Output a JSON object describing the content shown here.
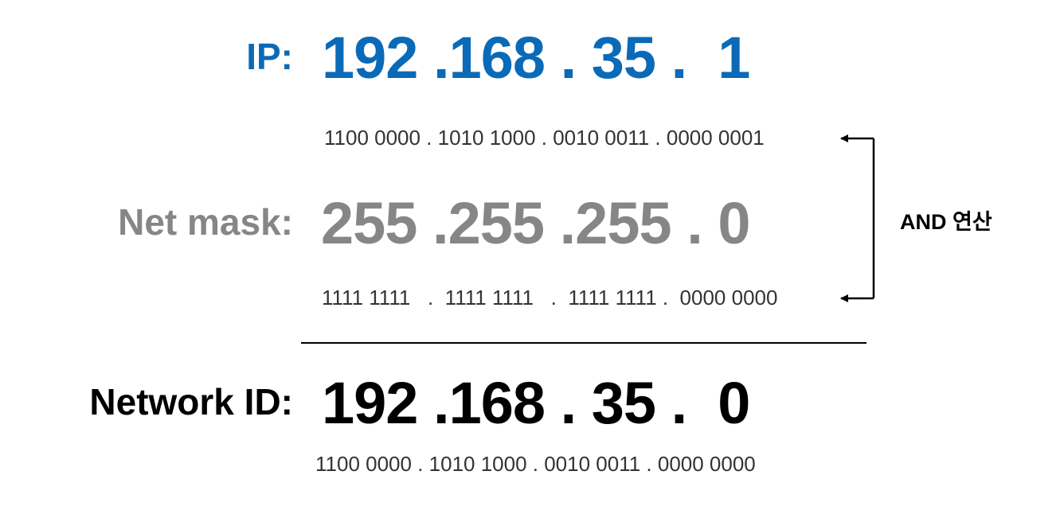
{
  "ip": {
    "label": "IP:",
    "value": "192 .168 . 35 .  1",
    "binary": "1100 0000 . 1010 1000 . 0010 0011 . 0000 0001",
    "color": "#0a6ab8"
  },
  "netmask": {
    "label": "Net mask:",
    "value": "255 .255 .255 . 0",
    "binary": "1111 1111   .  1111 1111   .  1111 1111 .  0000 0000",
    "color": "#868686"
  },
  "network_id": {
    "label": "Network ID:",
    "value": "192 .168 . 35 .  0",
    "binary": "1100 0000 . 1010 1000 . 0010 0011 . 0000 0000",
    "color": "#000000"
  },
  "operation": {
    "label": "AND 연산"
  }
}
